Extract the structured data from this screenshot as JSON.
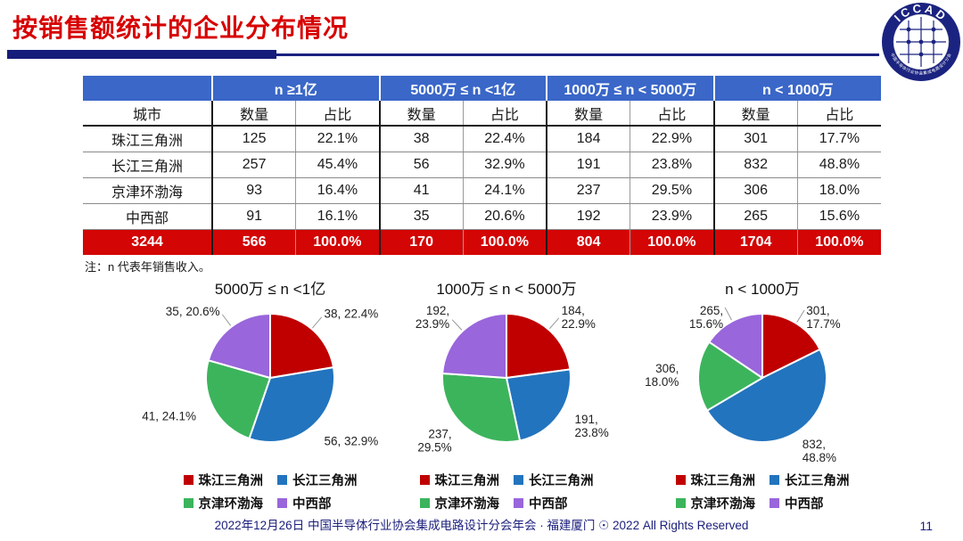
{
  "title": "按销售额统计的企业分布情况",
  "logo": {
    "top_text": "ICCAD",
    "bottom_text": "中国半导体行业协会集成电路设计分会"
  },
  "table": {
    "col_groups": [
      "n ≥1亿",
      "5000万 ≤ n <1亿",
      "1000万 ≤ n < 5000万",
      "n < 1000万"
    ],
    "sub": {
      "city": "城市",
      "count": "数量",
      "share": "占比"
    },
    "rows": [
      {
        "city": "珠江三角洲",
        "cells": [
          "125",
          "22.1%",
          "38",
          "22.4%",
          "184",
          "22.9%",
          "301",
          "17.7%"
        ]
      },
      {
        "city": "长江三角洲",
        "cells": [
          "257",
          "45.4%",
          "56",
          "32.9%",
          "191",
          "23.8%",
          "832",
          "48.8%"
        ]
      },
      {
        "city": "京津环渤海",
        "cells": [
          "93",
          "16.4%",
          "41",
          "24.1%",
          "237",
          "29.5%",
          "306",
          "18.0%"
        ]
      },
      {
        "city": "中西部",
        "cells": [
          "91",
          "16.1%",
          "35",
          "20.6%",
          "192",
          "23.9%",
          "265",
          "15.6%"
        ]
      }
    ],
    "total": {
      "city": "3244",
      "cells": [
        "566",
        "100.0%",
        "170",
        "100.0%",
        "804",
        "100.0%",
        "1704",
        "100.0%"
      ]
    }
  },
  "note": "注：n 代表年销售收入。",
  "chart_data": [
    {
      "type": "pie",
      "title": "5000万 ≤ n <1亿",
      "categories": [
        "珠江三角洲",
        "长江三角洲",
        "京津环渤海",
        "中西部"
      ],
      "values": [
        38,
        56,
        41,
        35
      ],
      "percents": [
        "22.4%",
        "32.9%",
        "24.1%",
        "20.6%"
      ],
      "colors": [
        "#c00000",
        "#2274be",
        "#3cb45c",
        "#9966db"
      ],
      "two_line_labels": false,
      "legend_position": "bottom"
    },
    {
      "type": "pie",
      "title": "1000万 ≤ n < 5000万",
      "categories": [
        "珠江三角洲",
        "长江三角洲",
        "京津环渤海",
        "中西部"
      ],
      "values": [
        184,
        191,
        237,
        192
      ],
      "percents": [
        "22.9%",
        "23.8%",
        "29.5%",
        "23.9%"
      ],
      "colors": [
        "#c00000",
        "#2274be",
        "#3cb45c",
        "#9966db"
      ],
      "two_line_labels": true,
      "legend_position": "bottom"
    },
    {
      "type": "pie",
      "title": "n < 1000万",
      "categories": [
        "珠江三角洲",
        "长江三角洲",
        "京津环渤海",
        "中西部"
      ],
      "values": [
        301,
        832,
        306,
        265
      ],
      "percents": [
        "17.7%",
        "48.8%",
        "18.0%",
        "15.6%"
      ],
      "colors": [
        "#c00000",
        "#2274be",
        "#3cb45c",
        "#9966db"
      ],
      "two_line_labels": true,
      "legend_position": "bottom"
    }
  ],
  "legend": {
    "items": [
      {
        "label": "珠江三角洲",
        "color": "#c00000"
      },
      {
        "label": "长江三角洲",
        "color": "#2274be"
      },
      {
        "label": "京津环渤海",
        "color": "#3cb45c"
      },
      {
        "label": "中西部",
        "color": "#9966db"
      }
    ]
  },
  "footer": {
    "text": "2022年12月26日 中国半导体行业协会集成电路设计分会年会 · 福建厦门 ☉ 2022 All Rights Reserved",
    "page_number": "11"
  }
}
